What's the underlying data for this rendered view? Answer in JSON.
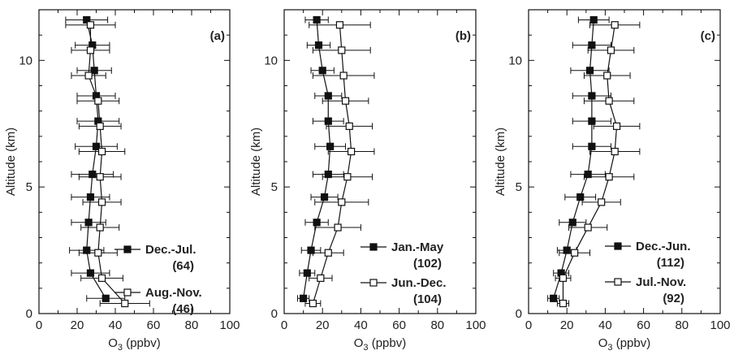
{
  "chart_data": [
    {
      "type": "line",
      "panel_label": "(a)",
      "xlabel": "O3 (ppbv)",
      "ylabel": "Altitude (km)",
      "xlim": [
        0,
        100
      ],
      "ylim": [
        0,
        12
      ],
      "xticks": [
        0,
        20,
        40,
        60,
        80,
        100
      ],
      "yticks": [
        0,
        5,
        10
      ],
      "legend_position": "bottom-right",
      "series": [
        {
          "name": "Dec.-Jul.",
          "count": "(64)",
          "marker": "filled-square",
          "points": [
            {
              "alt": 0.6,
              "o3": 35,
              "err": 10
            },
            {
              "alt": 1.6,
              "o3": 27,
              "err": 10
            },
            {
              "alt": 2.5,
              "o3": 25,
              "err": 9
            },
            {
              "alt": 3.6,
              "o3": 26,
              "err": 9
            },
            {
              "alt": 4.6,
              "o3": 27,
              "err": 10
            },
            {
              "alt": 5.5,
              "o3": 28,
              "err": 11
            },
            {
              "alt": 6.6,
              "o3": 30,
              "err": 11
            },
            {
              "alt": 7.6,
              "o3": 31,
              "err": 11
            },
            {
              "alt": 8.6,
              "o3": 30,
              "err": 10
            },
            {
              "alt": 9.6,
              "o3": 29,
              "err": 9
            },
            {
              "alt": 10.6,
              "o3": 28,
              "err": 9
            },
            {
              "alt": 11.6,
              "o3": 25,
              "err": 11
            }
          ]
        },
        {
          "name": "Aug.-Nov.",
          "count": "(46)",
          "marker": "open-square",
          "points": [
            {
              "alt": 0.4,
              "o3": 45,
              "err": 13
            },
            {
              "alt": 1.4,
              "o3": 33,
              "err": 11
            },
            {
              "alt": 2.4,
              "o3": 31,
              "err": 10
            },
            {
              "alt": 3.4,
              "o3": 32,
              "err": 10
            },
            {
              "alt": 4.4,
              "o3": 33,
              "err": 10
            },
            {
              "alt": 5.4,
              "o3": 32,
              "err": 11
            },
            {
              "alt": 6.4,
              "o3": 33,
              "err": 12
            },
            {
              "alt": 7.4,
              "o3": 32,
              "err": 11
            },
            {
              "alt": 8.4,
              "o3": 31,
              "err": 11
            },
            {
              "alt": 9.4,
              "o3": 26,
              "err": 9
            },
            {
              "alt": 10.4,
              "o3": 27,
              "err": 10
            },
            {
              "alt": 11.4,
              "o3": 27,
              "err": 13
            }
          ]
        }
      ]
    },
    {
      "type": "line",
      "panel_label": "(b)",
      "xlabel": "O3 (ppbv)",
      "ylabel": "Altitude (km)",
      "xlim": [
        0,
        100
      ],
      "ylim": [
        0,
        12
      ],
      "xticks": [
        0,
        20,
        40,
        60,
        80,
        100
      ],
      "yticks": [
        0,
        5,
        10
      ],
      "legend_position": "bottom-right",
      "series": [
        {
          "name": "Jan.-May",
          "count": "(102)",
          "marker": "filled-square",
          "points": [
            {
              "alt": 0.6,
              "o3": 10,
              "err": 3
            },
            {
              "alt": 1.6,
              "o3": 12,
              "err": 4
            },
            {
              "alt": 2.5,
              "o3": 14,
              "err": 5
            },
            {
              "alt": 3.6,
              "o3": 17,
              "err": 6
            },
            {
              "alt": 4.6,
              "o3": 21,
              "err": 7
            },
            {
              "alt": 5.5,
              "o3": 23,
              "err": 8
            },
            {
              "alt": 6.6,
              "o3": 24,
              "err": 8
            },
            {
              "alt": 7.6,
              "o3": 23,
              "err": 8
            },
            {
              "alt": 8.6,
              "o3": 23,
              "err": 7
            },
            {
              "alt": 9.6,
              "o3": 20,
              "err": 6
            },
            {
              "alt": 10.6,
              "o3": 18,
              "err": 6
            },
            {
              "alt": 11.6,
              "o3": 17,
              "err": 6
            }
          ]
        },
        {
          "name": "Jun.-Dec.",
          "count": "(104)",
          "marker": "open-square",
          "points": [
            {
              "alt": 0.4,
              "o3": 15,
              "err": 4
            },
            {
              "alt": 1.4,
              "o3": 19,
              "err": 6
            },
            {
              "alt": 2.4,
              "o3": 23,
              "err": 8
            },
            {
              "alt": 3.4,
              "o3": 28,
              "err": 12
            },
            {
              "alt": 4.4,
              "o3": 30,
              "err": 14
            },
            {
              "alt": 5.4,
              "o3": 33,
              "err": 13
            },
            {
              "alt": 6.4,
              "o3": 35,
              "err": 12
            },
            {
              "alt": 7.4,
              "o3": 34,
              "err": 12
            },
            {
              "alt": 8.4,
              "o3": 32,
              "err": 12
            },
            {
              "alt": 9.4,
              "o3": 31,
              "err": 16
            },
            {
              "alt": 10.4,
              "o3": 30,
              "err": 15
            },
            {
              "alt": 11.4,
              "o3": 29,
              "err": 16
            }
          ]
        }
      ]
    },
    {
      "type": "line",
      "panel_label": "(c)",
      "xlabel": "O3 (ppbv)",
      "ylabel": "Altitude (km)",
      "xlim": [
        0,
        100
      ],
      "ylim": [
        0,
        12
      ],
      "xticks": [
        0,
        20,
        40,
        60,
        80,
        100
      ],
      "yticks": [
        0,
        5,
        10
      ],
      "legend_position": "bottom-right",
      "series": [
        {
          "name": "Dec.-Jun.",
          "count": "(112)",
          "marker": "filled-square",
          "points": [
            {
              "alt": 0.6,
              "o3": 13,
              "err": 3
            },
            {
              "alt": 1.6,
              "o3": 17,
              "err": 4
            },
            {
              "alt": 2.5,
              "o3": 20,
              "err": 5
            },
            {
              "alt": 3.6,
              "o3": 23,
              "err": 7
            },
            {
              "alt": 4.6,
              "o3": 27,
              "err": 8
            },
            {
              "alt": 5.5,
              "o3": 31,
              "err": 9
            },
            {
              "alt": 6.6,
              "o3": 33,
              "err": 10
            },
            {
              "alt": 7.6,
              "o3": 33,
              "err": 10
            },
            {
              "alt": 8.6,
              "o3": 33,
              "err": 10
            },
            {
              "alt": 9.6,
              "o3": 32,
              "err": 10
            },
            {
              "alt": 10.6,
              "o3": 33,
              "err": 10
            },
            {
              "alt": 11.6,
              "o3": 34,
              "err": 8
            }
          ]
        },
        {
          "name": "Jul.-Nov.",
          "count": "(92)",
          "marker": "open-square",
          "points": [
            {
              "alt": 0.4,
              "o3": 18,
              "err": 3
            },
            {
              "alt": 1.4,
              "o3": 18,
              "err": 4
            },
            {
              "alt": 2.4,
              "o3": 24,
              "err": 8
            },
            {
              "alt": 3.4,
              "o3": 31,
              "err": 10
            },
            {
              "alt": 4.4,
              "o3": 38,
              "err": 10
            },
            {
              "alt": 5.4,
              "o3": 42,
              "err": 13
            },
            {
              "alt": 6.4,
              "o3": 45,
              "err": 13
            },
            {
              "alt": 7.4,
              "o3": 46,
              "err": 12
            },
            {
              "alt": 8.4,
              "o3": 42,
              "err": 13
            },
            {
              "alt": 9.4,
              "o3": 41,
              "err": 12
            },
            {
              "alt": 10.4,
              "o3": 43,
              "err": 12
            },
            {
              "alt": 11.4,
              "o3": 45,
              "err": 13
            }
          ]
        }
      ]
    }
  ]
}
